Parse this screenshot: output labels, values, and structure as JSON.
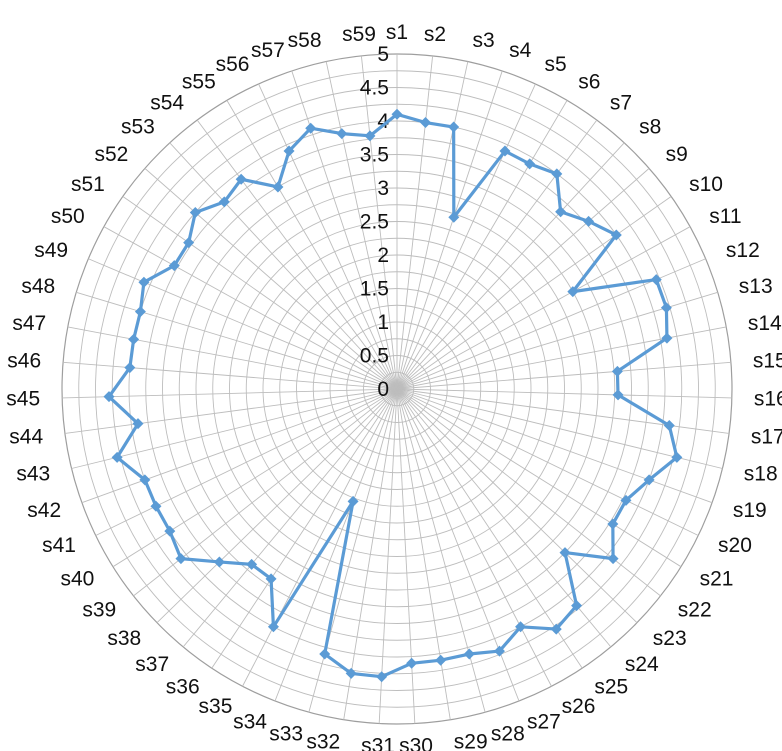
{
  "chart_data": {
    "type": "radar",
    "categories": [
      "s1",
      "s2",
      "s3",
      "s4",
      "s5",
      "s6",
      "s7",
      "s8",
      "s9",
      "s10",
      "s11",
      "s12",
      "s13",
      "s14",
      "s15",
      "s16",
      "s17",
      "s18",
      "s19",
      "s20",
      "s21",
      "s22",
      "s23",
      "s24",
      "s25",
      "s26",
      "s27",
      "s28",
      "s29",
      "s30",
      "s31",
      "s32",
      "s33",
      "s34",
      "s35",
      "s36",
      "s37",
      "s38",
      "s39",
      "s40",
      "s41",
      "s42",
      "s43",
      "s44",
      "s45",
      "s46",
      "s47",
      "s48",
      "s49",
      "s50",
      "s51",
      "s52",
      "s53",
      "s54",
      "s55",
      "s56",
      "s57",
      "s58",
      "s59"
    ],
    "series": [
      {
        "values": [
          4.1,
          4.0,
          4.0,
          2.7,
          3.9,
          3.9,
          4.0,
          3.6,
          3.8,
          4.0,
          3.0,
          4.2,
          4.2,
          4.1,
          3.3,
          3.3,
          4.1,
          4.3,
          4.0,
          3.8,
          3.8,
          4.1,
          3.5,
          4.2,
          4.3,
          4.0,
          4.2,
          4.1,
          4.1,
          4.1,
          4.3,
          4.3,
          4.1,
          1.8,
          4.0,
          3.4,
          3.4,
          3.7,
          4.1,
          4.0,
          4.0,
          4.0,
          4.3,
          3.9,
          4.3,
          4.0,
          4.0,
          4.0,
          4.1,
          3.8,
          3.8,
          4.0,
          3.8,
          3.9,
          3.5,
          3.9,
          4.1,
          3.9,
          3.8
        ],
        "color": "#5B9BD5"
      }
    ],
    "rlim": [
      0,
      5
    ],
    "ticks": [
      "0",
      "0.5",
      "1",
      "1.5",
      "2",
      "2.5",
      "3",
      "3.5",
      "4",
      "4.5",
      "5"
    ],
    "grid": true,
    "legend": "none"
  }
}
